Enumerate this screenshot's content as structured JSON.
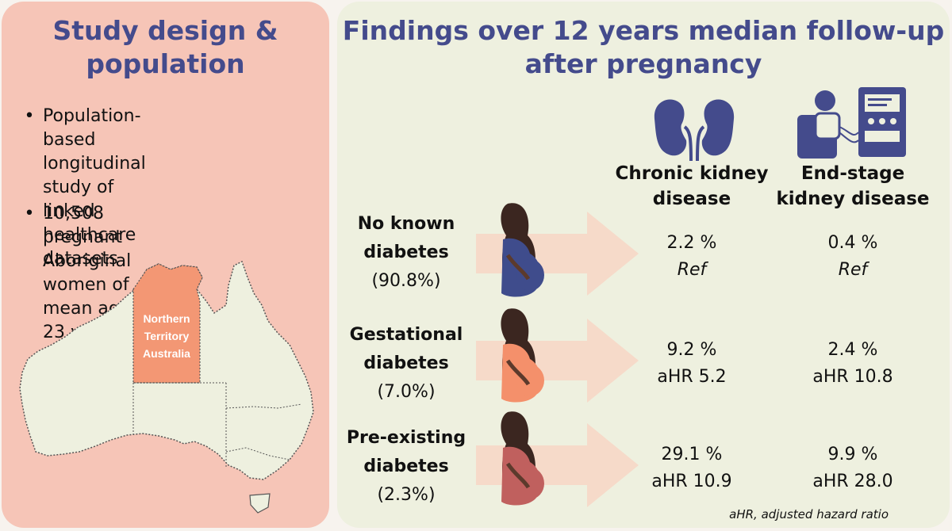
{
  "left": {
    "title_line1": "Study design &",
    "title_line2": "population",
    "bullets": [
      [
        "Population-based",
        "longitudinal study of linked",
        "healthcare datasets"
      ],
      [
        "10,508 pregnant Aboriginal",
        "women of mean age 23 years"
      ]
    ],
    "map_label": [
      "Northern",
      "Territory",
      "Australia"
    ],
    "map_colors": {
      "land": "#eef0df",
      "nt": "#f39774"
    }
  },
  "right": {
    "title_line1": "Findings over 12 years median follow-up",
    "title_line2": "after pregnancy",
    "columns": [
      {
        "line1": "Chronic kidney",
        "line2": "disease",
        "icon": "kidney-icon"
      },
      {
        "line1": "End-stage",
        "line2": "kidney disease",
        "icon": "dialysis-icon"
      }
    ],
    "rows": [
      {
        "label1": "No known",
        "label2": "diabetes",
        "pct": "(90.8%)",
        "color": "#3f4c8c",
        "ckd": [
          "2.2 %",
          "Ref"
        ],
        "eskd": [
          "0.4 %",
          "Ref"
        ]
      },
      {
        "label1": "Gestational",
        "label2": "diabetes",
        "pct": "(7.0%)",
        "color": "#f4906b",
        "ckd": [
          "9.2 %",
          "aHR 5.2"
        ],
        "eskd": [
          "2.4 %",
          "aHR 10.8"
        ]
      },
      {
        "label1": "Pre-existing",
        "label2": "diabetes",
        "pct": "(2.3%)",
        "color": "#c0605e",
        "ckd": [
          "29.1 %",
          "aHR 10.9"
        ],
        "eskd": [
          "9.9 %",
          "aHR 28.0"
        ]
      }
    ],
    "footnote": "aHR, adjusted hazard ratio"
  }
}
